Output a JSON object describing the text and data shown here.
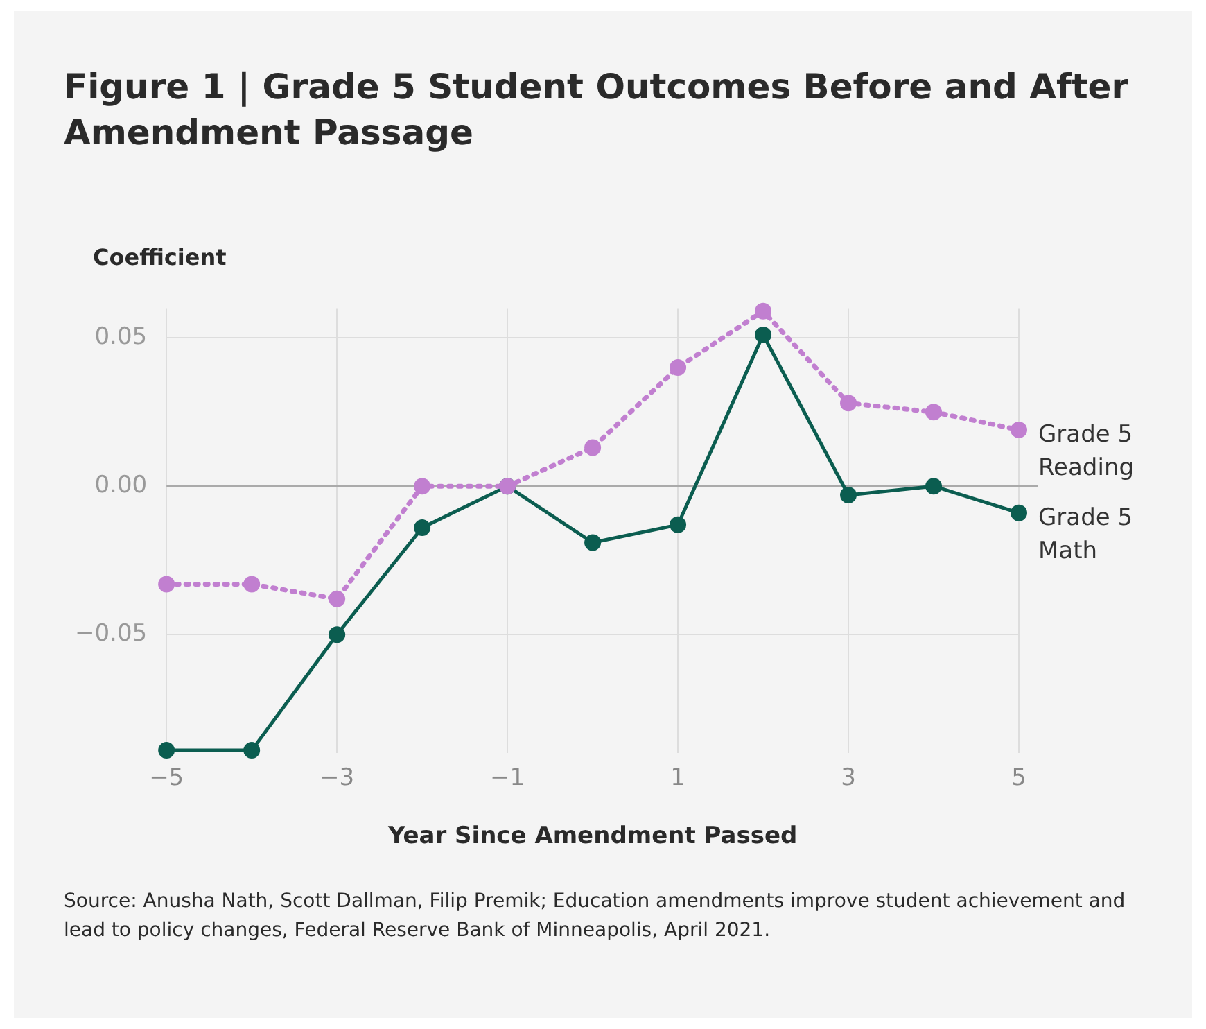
{
  "chart_data": {
    "type": "line",
    "title": "Figure 1 | Grade 5 Student Outcomes Before and After Amendment Passage",
    "ylabel": "Coefficient",
    "xlabel": "Year Since Amendment Passed",
    "annotations": [
      "Source: Anusha Nath, Scott Dallman, Filip Premik; Education amendments improve student achievement and lead to policy changes, Federal Reserve Bank of Minneapolis, April 2021."
    ],
    "x": [
      -5,
      -4,
      -3,
      -2,
      -1,
      0,
      1,
      2,
      3,
      4,
      5
    ],
    "series": [
      {
        "name": "Grade 5 Reading",
        "color": "#c17fd0",
        "line_style": "dotted",
        "values": [
          -0.033,
          -0.033,
          -0.038,
          0,
          0,
          0.013,
          0.04,
          0.059,
          0.028,
          0.025,
          0.019
        ]
      },
      {
        "name": "Grade 5 Math",
        "color": "#0b5d50",
        "line_style": "solid",
        "values": [
          -0.089,
          -0.089,
          -0.05,
          -0.014,
          0,
          -0.019,
          -0.013,
          0.051,
          -0.003,
          0,
          -0.009
        ]
      }
    ],
    "xlim": [
      -5,
      5
    ],
    "xticks": [
      {
        "value": -5,
        "label": "−5"
      },
      {
        "value": -3,
        "label": "−3"
      },
      {
        "value": -1,
        "label": "−1"
      },
      1,
      3,
      5
    ],
    "ylim": [
      -0.09,
      0.06
    ],
    "yticks": [
      {
        "value": -0.05,
        "label": "−0.05"
      },
      {
        "value": 0,
        "label": "0.00"
      },
      0.05
    ],
    "ref_lines": [
      {
        "axis": "y",
        "value": 0,
        "color": "#aaaaaa"
      }
    ],
    "grid": true,
    "legend": false,
    "marker": "circle"
  }
}
